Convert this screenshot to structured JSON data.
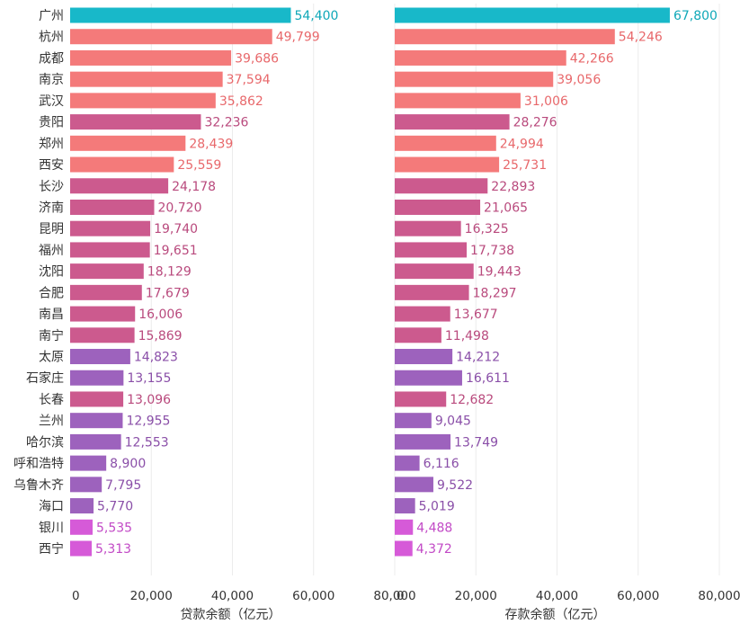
{
  "chart_data": {
    "type": "bar",
    "orientation": "horizontal",
    "categories": [
      "广州",
      "杭州",
      "成都",
      "南京",
      "武汉",
      "贵阳",
      "郑州",
      "西安",
      "长沙",
      "济南",
      "昆明",
      "福州",
      "沈阳",
      "合肥",
      "南昌",
      "南宁",
      "太原",
      "石家庄",
      "长春",
      "兰州",
      "哈尔滨",
      "呼和浩特",
      "乌鲁木齐",
      "海口",
      "银川",
      "西宁"
    ],
    "panels": [
      {
        "xlabel": "贷款余额（亿元）",
        "xlim": [
          0,
          80000
        ],
        "ticks": [
          0,
          20000,
          40000,
          60000,
          80000
        ],
        "tick_labels": [
          "0",
          "20,000",
          "40,000",
          "60,000",
          "80,000"
        ],
        "values": [
          54400,
          49799,
          39686,
          37594,
          35862,
          32236,
          28439,
          25559,
          24178,
          20720,
          19740,
          19651,
          18129,
          17679,
          16006,
          15869,
          14823,
          13155,
          13096,
          12955,
          12553,
          8900,
          7795,
          5770,
          5535,
          5313
        ],
        "value_labels": [
          "54,400",
          "49,799",
          "39,686",
          "37,594",
          "35,862",
          "32,236",
          "28,439",
          "25,559",
          "24,178",
          "20,720",
          "19,740",
          "19,651",
          "18,129",
          "17,679",
          "16,006",
          "15,869",
          "14,823",
          "13,155",
          "13,096",
          "12,955",
          "12,553",
          "8,900",
          "7,795",
          "5,770",
          "5,535",
          "5,313"
        ]
      },
      {
        "xlabel": "存款余额（亿元）",
        "xlim": [
          0,
          80000
        ],
        "ticks": [
          0,
          20000,
          40000,
          60000,
          80000
        ],
        "tick_labels": [
          "0",
          "20,000",
          "40,000",
          "60,000",
          "80,000"
        ],
        "values": [
          67800,
          54246,
          42266,
          39056,
          31006,
          28276,
          24994,
          25731,
          22893,
          21065,
          16325,
          17738,
          19443,
          18297,
          13677,
          11498,
          14212,
          16611,
          12682,
          9045,
          13749,
          6116,
          9522,
          5019,
          4488,
          4372
        ],
        "value_labels": [
          "67,800",
          "54,246",
          "42,266",
          "39,056",
          "31,006",
          "28,276",
          "24,994",
          "25,731",
          "22,893",
          "21,065",
          "16,325",
          "17,738",
          "19,443",
          "18,297",
          "13,677",
          "11,498",
          "14,212",
          "16,611",
          "12,682",
          "9,045",
          "13,749",
          "6,116",
          "9,522",
          "5,019",
          "4,488",
          "4,372"
        ]
      }
    ],
    "category_colors": [
      "#18b8c9",
      "#f47a7a",
      "#f47a7a",
      "#f47a7a",
      "#f47a7a",
      "#cc5a8e",
      "#f47a7a",
      "#f47a7a",
      "#cc5a8e",
      "#cc5a8e",
      "#cc5a8e",
      "#cc5a8e",
      "#cc5a8e",
      "#cc5a8e",
      "#cc5a8e",
      "#cc5a8e",
      "#9d62bd",
      "#9d62bd",
      "#cc5a8e",
      "#9d62bd",
      "#9d62bd",
      "#9d62bd",
      "#9d62bd",
      "#9d62bd",
      "#d65ad8",
      "#d65ad8"
    ],
    "label_colors": [
      "#0fa8b8",
      "#e8686b",
      "#e8686b",
      "#e8686b",
      "#e8686b",
      "#b94a7d",
      "#e8686b",
      "#e8686b",
      "#b94a7d",
      "#b94a7d",
      "#b94a7d",
      "#b94a7d",
      "#b94a7d",
      "#b94a7d",
      "#b94a7d",
      "#b94a7d",
      "#8a4fa8",
      "#8a4fa8",
      "#b94a7d",
      "#8a4fa8",
      "#8a4fa8",
      "#8a4fa8",
      "#8a4fa8",
      "#8a4fa8",
      "#c24ac6",
      "#c24ac6"
    ],
    "grid": true,
    "legend": "none"
  }
}
